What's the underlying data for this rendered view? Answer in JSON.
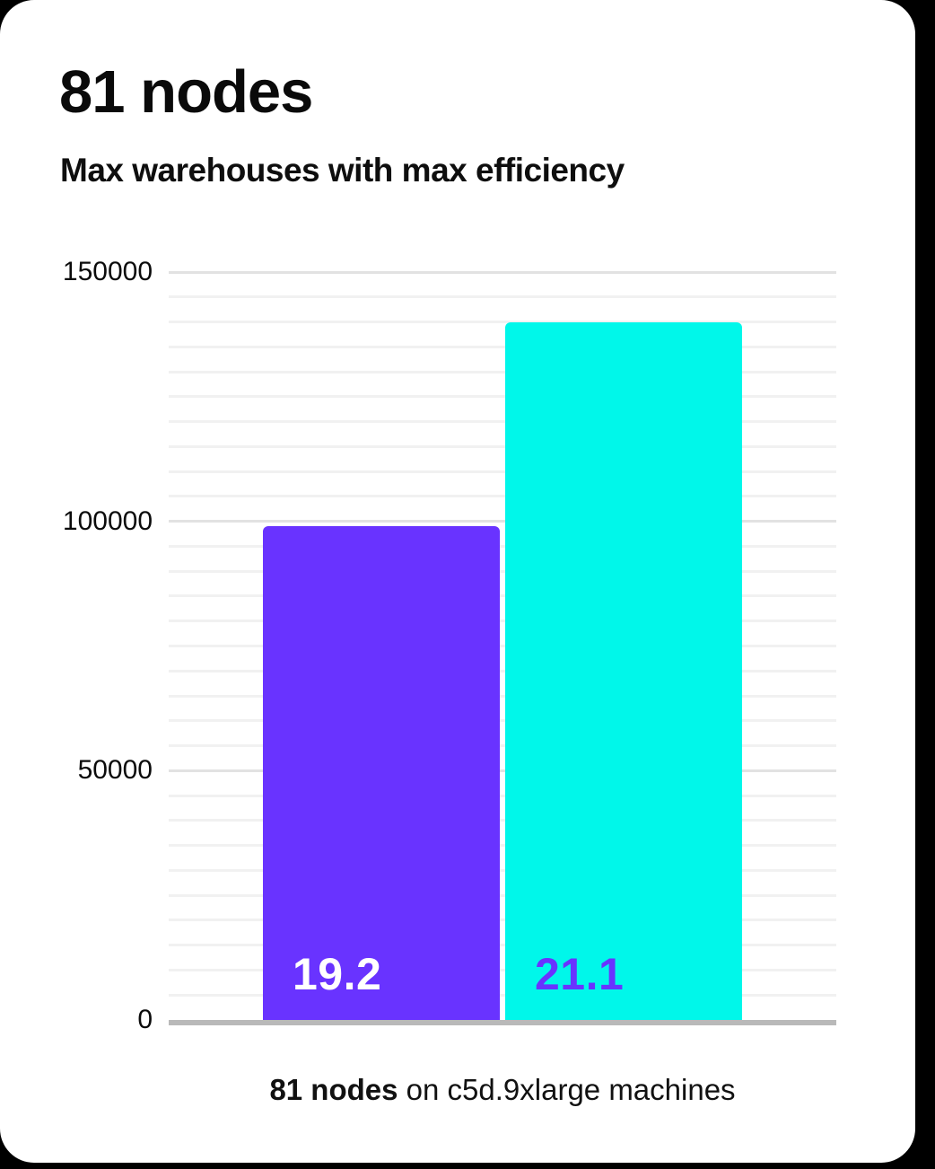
{
  "page": {
    "background_color": "#000000",
    "card_color": "#ffffff"
  },
  "header": {
    "title": "81 nodes",
    "subtitle": "Max warehouses with max efficiency"
  },
  "caption": {
    "bold": "81 nodes",
    "rest": " on c5d.9xlarge machines"
  },
  "chart_data": {
    "type": "bar",
    "title": "81 nodes",
    "subtitle": "Max warehouses with max efficiency",
    "categories": [
      "19.2",
      "21.1"
    ],
    "values": [
      99000,
      140000
    ],
    "bar_labels": [
      "19.2",
      "21.1"
    ],
    "bar_colors": [
      "#6933ff",
      "#00f7ea"
    ],
    "bar_label_colors": [
      "#ffffff",
      "#6933ff"
    ],
    "xlabel": "",
    "ylabel": "",
    "ylim": [
      0,
      150000
    ],
    "yticks": [
      0,
      50000,
      100000,
      150000
    ],
    "ytick_labels": [
      "0",
      "50000",
      "100000",
      "150000"
    ],
    "minor_grid_step": 5000,
    "grid": true,
    "legend_position": "none",
    "axis_line_color": "#b9b9b9",
    "major_grid_color": "#e2e2e2",
    "minor_grid_color": "#f1f1f1",
    "annotation": "81 nodes on c5d.9xlarge machines"
  }
}
